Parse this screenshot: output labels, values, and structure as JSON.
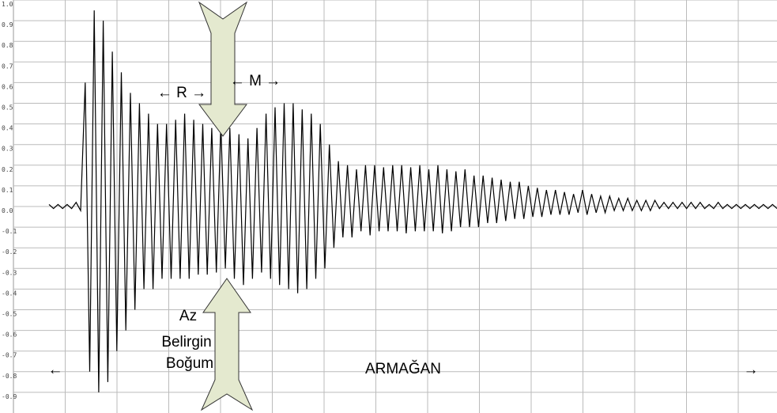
{
  "chart_data": {
    "type": "line",
    "color": "#000000",
    "grid": true,
    "ylim": [
      -1,
      1
    ],
    "yticks": [
      {
        "value": 1,
        "label": "1.0"
      },
      0.9,
      0.8,
      0.7,
      0.6,
      0.5,
      0.4,
      0.3,
      0.2,
      0.1,
      {
        "value": 0,
        "label": "0.0"
      },
      -0.1,
      -0.2,
      -0.3,
      -0.4,
      -0.5,
      -0.6,
      -0.7,
      -0.8,
      -0.9
    ],
    "values": [
      0.01,
      -0.01,
      0.01,
      -0.01,
      0.01,
      -0.01,
      0.02,
      -0.02,
      0.6,
      -0.8,
      0.95,
      -0.9,
      0.9,
      -0.85,
      0.75,
      -0.7,
      0.65,
      -0.6,
      0.55,
      -0.5,
      0.5,
      -0.4,
      0.45,
      -0.4,
      0.4,
      -0.35,
      0.4,
      -0.35,
      0.42,
      -0.35,
      0.45,
      -0.35,
      0.42,
      -0.33,
      0.4,
      -0.33,
      0.38,
      -0.32,
      0.4,
      -0.3,
      0.38,
      -0.35,
      0.35,
      -0.38,
      0.33,
      -0.35,
      0.38,
      -0.32,
      0.45,
      -0.35,
      0.48,
      -0.38,
      0.5,
      -0.4,
      0.5,
      -0.42,
      0.47,
      -0.4,
      0.45,
      -0.35,
      0.4,
      -0.3,
      0.3,
      -0.2,
      0.22,
      -0.15,
      0.2,
      -0.15,
      0.18,
      -0.12,
      0.2,
      -0.14,
      0.2,
      -0.12,
      0.19,
      -0.12,
      0.2,
      -0.12,
      0.2,
      -0.13,
      0.19,
      -0.12,
      0.2,
      -0.12,
      0.18,
      -0.12,
      0.2,
      -0.13,
      0.18,
      -0.12,
      0.17,
      -0.1,
      0.18,
      -0.1,
      0.15,
      -0.1,
      0.15,
      -0.08,
      0.14,
      -0.08,
      0.13,
      -0.07,
      0.12,
      -0.06,
      0.12,
      -0.06,
      0.1,
      -0.05,
      0.09,
      -0.05,
      0.08,
      -0.04,
      0.08,
      -0.04,
      0.07,
      -0.04,
      0.06,
      -0.03,
      0.08,
      -0.04,
      0.06,
      -0.03,
      0.05,
      -0.03,
      0.05,
      -0.02,
      0.04,
      -0.02,
      0.04,
      -0.02,
      0.03,
      -0.02,
      0.03,
      -0.02,
      0.03,
      -0.01,
      0.02,
      -0.01,
      0.02,
      -0.01,
      0.02,
      -0.01,
      0.02,
      -0.01,
      0.02,
      -0.01,
      0.01,
      -0.01,
      0.02,
      -0.01,
      0.01,
      -0.01,
      0.01,
      -0.01,
      0.01,
      -0.01,
      0.01,
      -0.01,
      0.01,
      -0.01,
      0.01,
      -0.01
    ],
    "annotations": [
      "← R →",
      "← M →",
      "Az",
      "Belirgin",
      "Boğum",
      "ARMAĞAN",
      "←",
      "→"
    ]
  }
}
